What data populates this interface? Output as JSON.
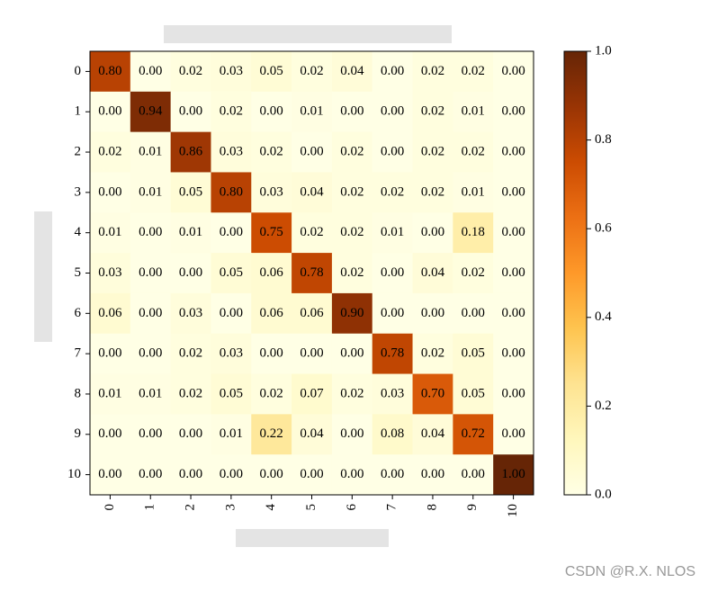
{
  "chart_data": {
    "type": "heatmap",
    "categories": [
      "0",
      "1",
      "2",
      "3",
      "4",
      "5",
      "6",
      "7",
      "8",
      "9",
      "10"
    ],
    "values": [
      [
        0.8,
        0.0,
        0.02,
        0.03,
        0.05,
        0.02,
        0.04,
        0.0,
        0.02,
        0.02,
        0.0
      ],
      [
        0.0,
        0.94,
        0.0,
        0.02,
        0.0,
        0.01,
        0.0,
        0.0,
        0.02,
        0.01,
        0.0
      ],
      [
        0.02,
        0.01,
        0.86,
        0.03,
        0.02,
        0.0,
        0.02,
        0.0,
        0.02,
        0.02,
        0.0
      ],
      [
        0.0,
        0.01,
        0.05,
        0.8,
        0.03,
        0.04,
        0.02,
        0.02,
        0.02,
        0.01,
        0.0
      ],
      [
        0.01,
        0.0,
        0.01,
        0.0,
        0.75,
        0.02,
        0.02,
        0.01,
        0.0,
        0.18,
        0.0
      ],
      [
        0.03,
        0.0,
        0.0,
        0.05,
        0.06,
        0.78,
        0.02,
        0.0,
        0.04,
        0.02,
        0.0
      ],
      [
        0.06,
        0.0,
        0.03,
        0.0,
        0.06,
        0.06,
        0.9,
        0.0,
        0.0,
        0.0,
        0.0
      ],
      [
        0.0,
        0.0,
        0.02,
        0.03,
        0.0,
        0.0,
        0.0,
        0.78,
        0.02,
        0.05,
        0.0
      ],
      [
        0.01,
        0.01,
        0.02,
        0.05,
        0.02,
        0.07,
        0.02,
        0.03,
        0.7,
        0.05,
        0.0
      ],
      [
        0.0,
        0.0,
        0.0,
        0.01,
        0.22,
        0.04,
        0.0,
        0.08,
        0.04,
        0.72,
        0.0
      ],
      [
        0.0,
        0.0,
        0.0,
        0.0,
        0.0,
        0.0,
        0.0,
        0.0,
        0.0,
        0.0,
        1.0
      ]
    ],
    "value_labels": [
      [
        "0.80",
        "0.00",
        "0.02",
        "0.03",
        "0.05",
        "0.02",
        "0.04",
        "0.00",
        "0.02",
        "0.02",
        "0.00"
      ],
      [
        "0.00",
        "0.94",
        "0.00",
        "0.02",
        "0.00",
        "0.01",
        "0.00",
        "0.00",
        "0.02",
        "0.01",
        "0.00"
      ],
      [
        "0.02",
        "0.01",
        "0.86",
        "0.03",
        "0.02",
        "0.00",
        "0.02",
        "0.00",
        "0.02",
        "0.02",
        "0.00"
      ],
      [
        "0.00",
        "0.01",
        "0.05",
        "0.80",
        "0.03",
        "0.04",
        "0.02",
        "0.02",
        "0.02",
        "0.01",
        "0.00"
      ],
      [
        "0.01",
        "0.00",
        "0.01",
        "0.00",
        "0.75",
        "0.02",
        "0.02",
        "0.01",
        "0.00",
        "0.18",
        "0.00"
      ],
      [
        "0.03",
        "0.00",
        "0.00",
        "0.05",
        "0.06",
        "0.78",
        "0.02",
        "0.00",
        "0.04",
        "0.02",
        "0.00"
      ],
      [
        "0.06",
        "0.00",
        "0.03",
        "0.00",
        "0.06",
        "0.06",
        "0.90",
        "0.00",
        "0.00",
        "0.00",
        "0.00"
      ],
      [
        "0.00",
        "0.00",
        "0.02",
        "0.03",
        "0.00",
        "0.00",
        "0.00",
        "0.78",
        "0.02",
        "0.05",
        "0.00"
      ],
      [
        "0.01",
        "0.01",
        "0.02",
        "0.05",
        "0.02",
        "0.07",
        "0.02",
        "0.03",
        "0.70",
        "0.05",
        "0.00"
      ],
      [
        "0.00",
        "0.00",
        "0.00",
        "0.01",
        "0.22",
        "0.04",
        "0.00",
        "0.08",
        "0.04",
        "0.72",
        "0.00"
      ],
      [
        "0.00",
        "0.00",
        "0.00",
        "0.00",
        "0.00",
        "0.00",
        "0.00",
        "0.00",
        "0.00",
        "0.00",
        "1.00"
      ]
    ],
    "colormap": "YlOrBr",
    "clim": [
      0,
      1
    ],
    "cticks": [
      {
        "value": 0,
        "label": "0.0"
      },
      {
        "value": 0.2,
        "label": "0.2"
      },
      {
        "value": 0.4,
        "label": "0.4"
      },
      {
        "value": 0.6,
        "label": "0.6"
      },
      {
        "value": 0.8,
        "label": "0.8"
      },
      {
        "value": 1,
        "label": "1.0"
      }
    ],
    "watermark": "CSDN @R.X. NLOS"
  }
}
